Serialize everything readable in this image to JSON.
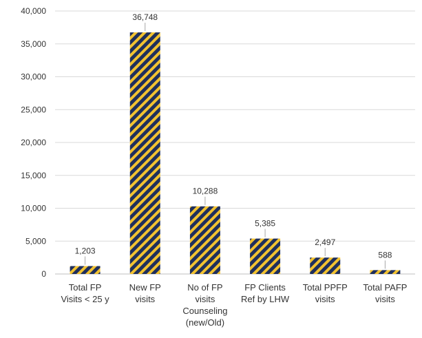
{
  "chart_data": {
    "type": "bar",
    "title": "",
    "xlabel": "",
    "ylabel": "",
    "categories": [
      [
        "Total FP",
        "Visits < 25 y"
      ],
      [
        "New FP",
        "visits"
      ],
      [
        "No of FP",
        "visits",
        "Counseling",
        "(new/Old)"
      ],
      [
        "FP Clients",
        "Ref by LHW"
      ],
      [
        "Total PPFP",
        "visits"
      ],
      [
        "Total PAFP",
        "visits"
      ]
    ],
    "values": [
      1203,
      36748,
      10288,
      5385,
      2497,
      588
    ],
    "data_labels": [
      "1,203",
      "36,748",
      "10,288",
      "5,385",
      "2,497",
      "588"
    ],
    "ylim": [
      0,
      40000
    ],
    "y_ticks": [
      0,
      5000,
      10000,
      15000,
      20000,
      25000,
      30000,
      35000,
      40000
    ],
    "y_tick_labels": [
      "0",
      "5,000",
      "10,000",
      "15,000",
      "20,000",
      "25,000",
      "30,000",
      "35,000",
      "40,000"
    ],
    "grid": true,
    "legend": "none",
    "colors": {
      "bar_stripe_a": "#1f2f5c",
      "bar_stripe_b": "#f2c230",
      "grid": "#d9d9d9",
      "text": "#333333",
      "leader_line": "#a6a6a6"
    }
  }
}
